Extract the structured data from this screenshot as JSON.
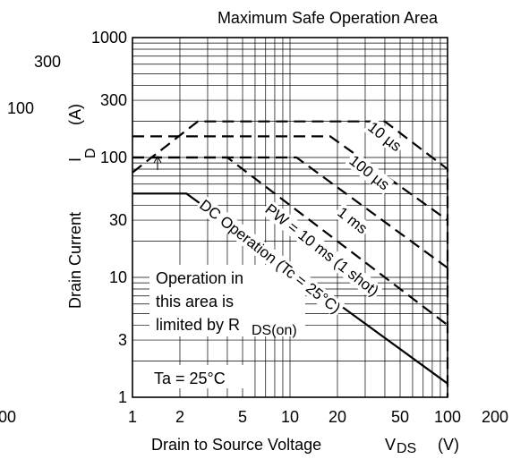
{
  "chart_data": {
    "type": "line",
    "title": "Maximum Safe Operation Area",
    "xlabel": "Drain to Source Voltage",
    "xlabel_symbol": "V",
    "xlabel_sub": "DS",
    "xlabel_unit": "(V)",
    "ylabel": "Drain Current",
    "ylabel_symbol": "I",
    "ylabel_sub": "D",
    "ylabel_unit": "(A)",
    "x_scale": "log",
    "y_scale": "log",
    "xlim": [
      1,
      100
    ],
    "ylim": [
      1,
      1000
    ],
    "grid": true,
    "x_ticks": [
      {
        "value": 1,
        "label": "1"
      },
      {
        "value": 2,
        "label": "2"
      },
      {
        "value": 5,
        "label": "5"
      },
      {
        "value": 10,
        "label": "10"
      },
      {
        "value": 20,
        "label": "20"
      },
      {
        "value": 50,
        "label": "50"
      },
      {
        "value": 100,
        "label": "100"
      },
      {
        "value": 200,
        "label": "200"
      }
    ],
    "y_ticks": [
      {
        "value": 1,
        "label": "1"
      },
      {
        "value": 3,
        "label": "3"
      },
      {
        "value": 10,
        "label": "10"
      },
      {
        "value": 30,
        "label": "30"
      },
      {
        "value": 100,
        "label": "100"
      },
      {
        "value": 300,
        "label": "300"
      },
      {
        "value": 1000,
        "label": "1000"
      }
    ],
    "extra_text": {
      "left_300": "300",
      "left_100": "100",
      "bottom_left": "00"
    },
    "series": [
      {
        "name": "10 µs",
        "style": "dashed",
        "points": [
          [
            1,
            75
          ],
          [
            2.6,
            200
          ],
          [
            40,
            200
          ],
          [
            100,
            80
          ],
          [
            100,
            1
          ]
        ]
      },
      {
        "name": "100 µs",
        "style": "dashed",
        "points": [
          [
            1,
            150
          ],
          [
            18,
            150
          ],
          [
            100,
            30
          ]
        ]
      },
      {
        "name": "1 ms",
        "style": "dashed",
        "points": [
          [
            1,
            100
          ],
          [
            4,
            100
          ],
          [
            100,
            4
          ]
        ]
      },
      {
        "name": "PW = 10 ms (1 shot)",
        "style": "dashed",
        "points": [
          [
            1,
            100
          ],
          [
            11,
            100
          ],
          [
            100,
            12
          ]
        ]
      },
      {
        "name": "DC Operation (Tc = 25°C)",
        "style": "solid",
        "points": [
          [
            1,
            50
          ],
          [
            2.2,
            50
          ],
          [
            100,
            1.3
          ]
        ]
      }
    ],
    "curve_labels": [
      {
        "text": "10 µs",
        "x": 40,
        "y": 150,
        "angle": 38
      },
      {
        "text": "100 µs",
        "x": 32,
        "y": 75,
        "angle": 38
      },
      {
        "text": "1 ms",
        "x": 25,
        "y": 30,
        "angle": 38
      },
      {
        "text": "PW = 10 ms (1 shot)",
        "x": 16,
        "y": 17,
        "angle": 38
      },
      {
        "text": "DC Operation (Tc = 25°C)",
        "x": 7.5,
        "y": 15,
        "angle": 38
      }
    ],
    "annotations": {
      "rds_box": [
        "Operation in",
        "this area is",
        "limited by R"
      ],
      "rds_sub": "DS(on)",
      "ta": "Ta = 25°C"
    }
  }
}
